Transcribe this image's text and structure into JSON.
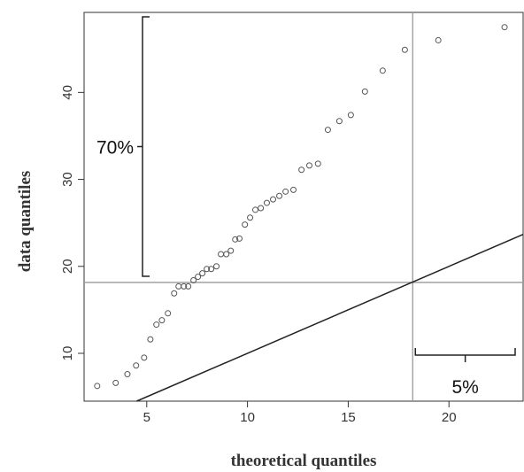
{
  "chart_data": {
    "type": "scatter",
    "x_label": "theoretical quantiles",
    "y_label": "data quantiles",
    "x": [
      2.54,
      3.46,
      4.04,
      4.47,
      4.87,
      5.18,
      5.48,
      5.75,
      6.05,
      6.36,
      6.58,
      6.84,
      7.06,
      7.32,
      7.54,
      7.76,
      7.98,
      8.2,
      8.46,
      8.68,
      8.95,
      9.17,
      9.39,
      9.6,
      9.87,
      10.13,
      10.39,
      10.66,
      10.96,
      11.27,
      11.58,
      11.89,
      12.28,
      12.68,
      13.07,
      13.5,
      13.99,
      14.56,
      15.13,
      15.83,
      16.71,
      17.81,
      19.47,
      22.76
    ],
    "values": [
      6.25,
      6.6,
      7.6,
      8.6,
      9.5,
      11.6,
      13.3,
      13.8,
      14.6,
      16.9,
      17.7,
      17.7,
      17.7,
      18.4,
      18.8,
      19.2,
      19.7,
      19.7,
      20.0,
      21.4,
      21.4,
      21.8,
      23.1,
      23.2,
      24.8,
      25.6,
      26.5,
      26.7,
      27.3,
      27.7,
      28.1,
      28.6,
      28.8,
      31.1,
      31.6,
      31.8,
      35.7,
      36.7,
      37.4,
      40.1,
      42.5,
      44.9,
      46.0,
      47.5
    ],
    "color": "#555555",
    "xlim": [
      1.89,
      23.68
    ],
    "ylim": [
      4.5,
      49.2
    ],
    "xticks": [
      5,
      10,
      15,
      20
    ],
    "yticks": [
      10,
      20,
      30,
      40
    ],
    "reference_line": {
      "intercept": 0,
      "slope": 1
    },
    "vline": 18.2,
    "hline": 18.15,
    "annotations": {
      "upper_share": "70%",
      "right_share": "5%"
    }
  }
}
